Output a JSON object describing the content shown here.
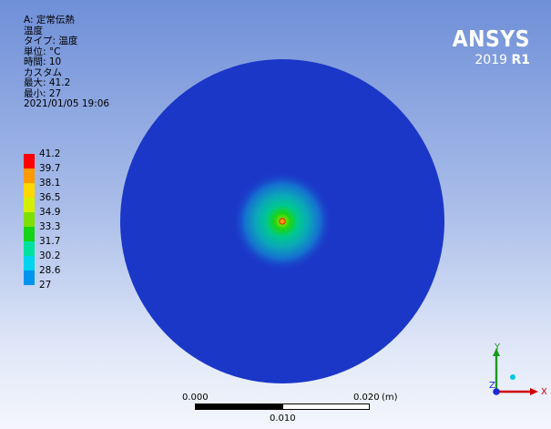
{
  "info": {
    "title": "A: 定常伝熱",
    "result": "温度",
    "type": "タイプ: 温度",
    "unit": "単位: °C",
    "time": "時間: 10",
    "custom": "カスタム",
    "max": "最大: 41.2",
    "min": "最小: 27",
    "timestamp": "2021/01/05 19:06"
  },
  "legend": [
    {
      "label": "41.2",
      "color": "#ff0000"
    },
    {
      "label": "39.7",
      "color": "#ff9a00"
    },
    {
      "label": "38.1",
      "color": "#ffd800"
    },
    {
      "label": "36.5",
      "color": "#d4f000"
    },
    {
      "label": "34.9",
      "color": "#7de000"
    },
    {
      "label": "33.3",
      "color": "#18d418"
    },
    {
      "label": "31.7",
      "color": "#00e0a0"
    },
    {
      "label": "30.2",
      "color": "#00d4ee"
    },
    {
      "label": "28.6",
      "color": "#0094f0"
    },
    {
      "label": "27",
      "color": "#0000ff"
    }
  ],
  "logo": {
    "brand": "ANSYS",
    "version_year": "2019",
    "version_release": "R1"
  },
  "scale_bar": {
    "start": "0.000",
    "end": "0.020",
    "unit": "(m)",
    "mid": "0.010"
  },
  "triad": {
    "y_label": "Y",
    "x_label": "X",
    "z_label": "Z"
  },
  "colors": {
    "background_top": "#6f8fd8",
    "background_bottom": "#f4f6fc",
    "model_base": "#1b37c8",
    "hotspot": "#ffd800"
  }
}
